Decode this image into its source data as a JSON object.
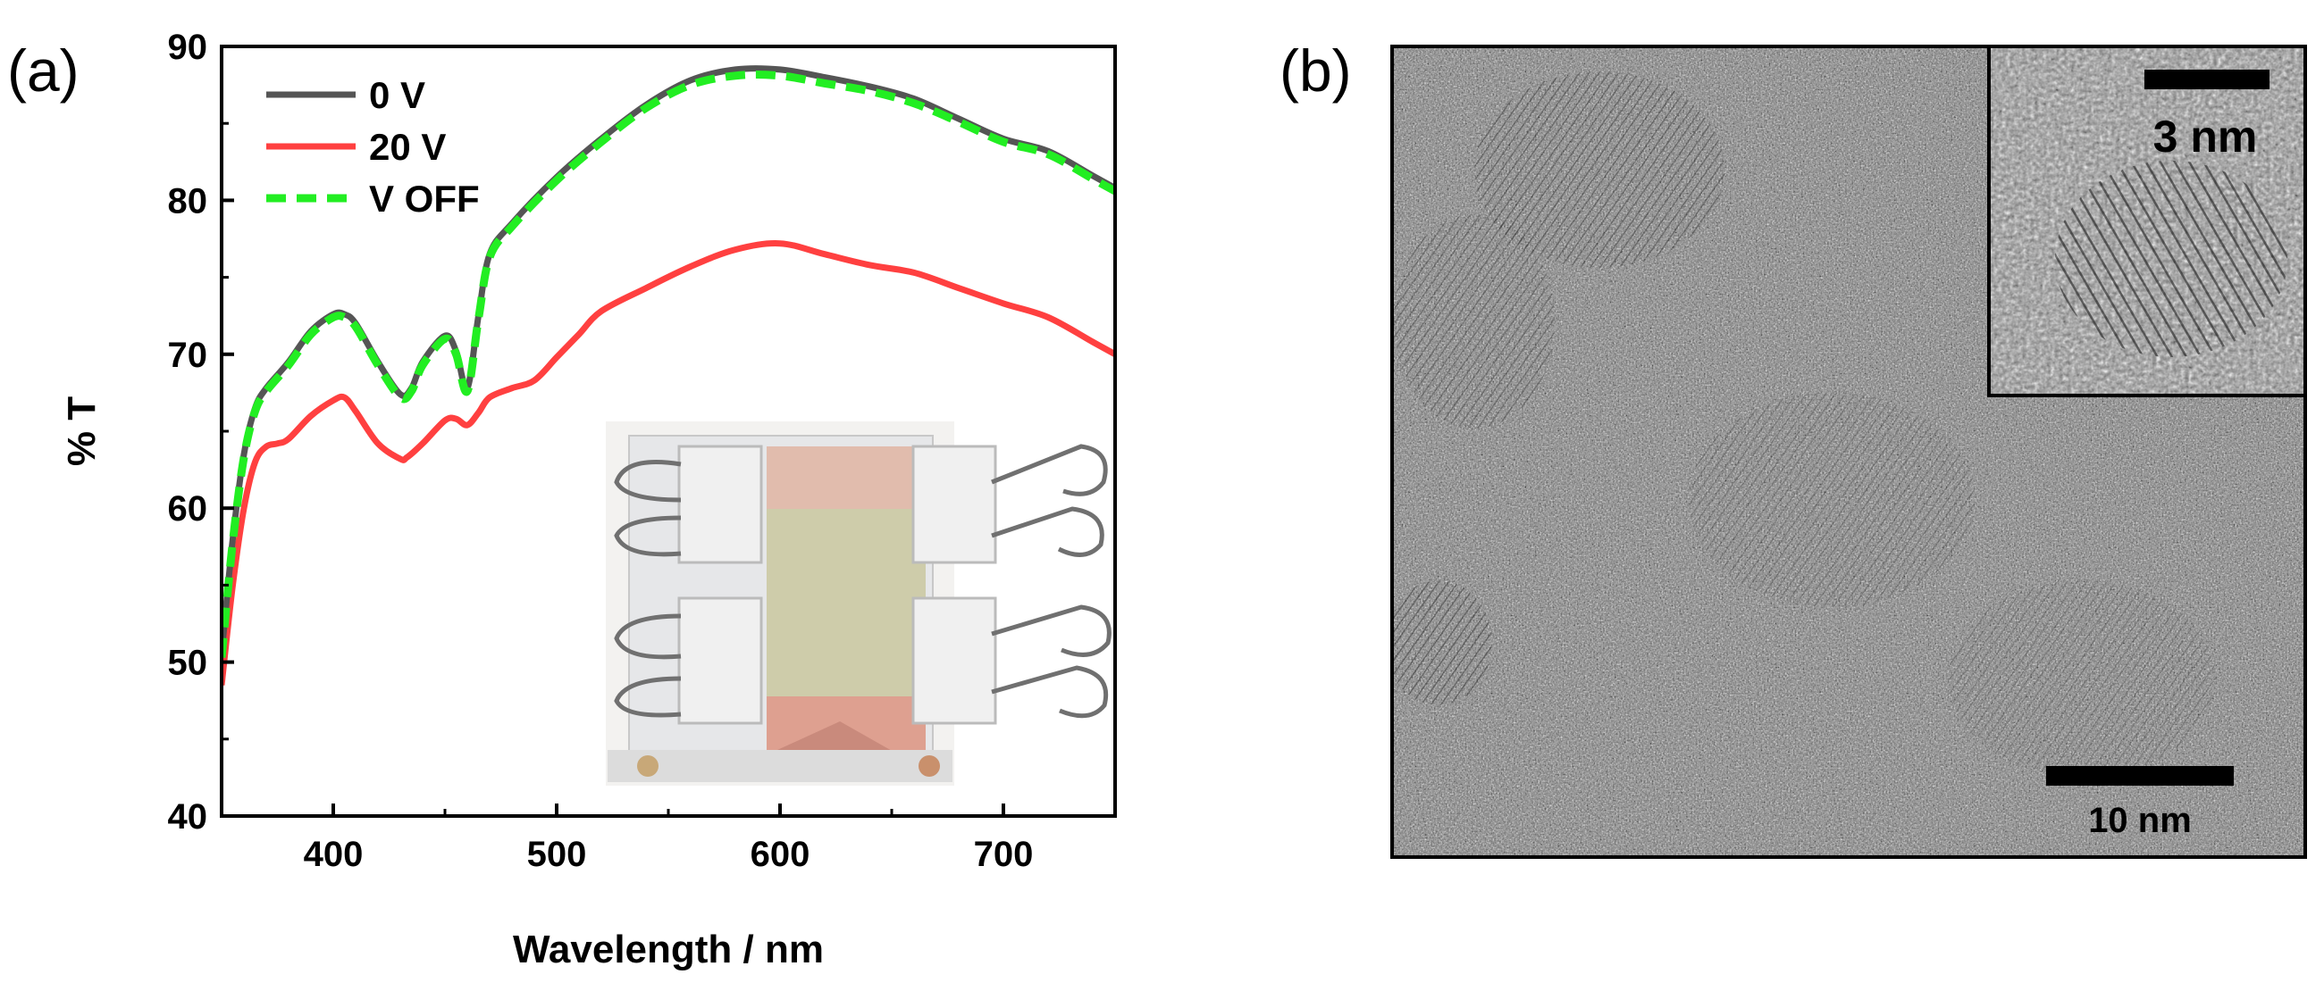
{
  "panels": {
    "a": {
      "label": "(a)"
    },
    "b": {
      "label": "(b)"
    }
  },
  "chart_data": {
    "type": "line",
    "title": "",
    "xlabel": "Wavelength / nm",
    "ylabel": "% T",
    "xlim": [
      350,
      750
    ],
    "ylim": [
      40,
      90
    ],
    "x_ticks": [
      400,
      500,
      600,
      700
    ],
    "y_ticks": [
      40,
      50,
      60,
      70,
      80,
      90
    ],
    "grid": false,
    "legend_position": "top-left",
    "series": [
      {
        "name": "0 V",
        "color": "#555555",
        "style": "solid",
        "x": [
          350,
          355,
          360,
          365,
          370,
          380,
          390,
          400,
          405,
          410,
          420,
          430,
          435,
          440,
          450,
          455,
          460,
          465,
          470,
          480,
          500,
          520,
          540,
          560,
          580,
          600,
          620,
          640,
          660,
          680,
          700,
          720,
          740,
          750
        ],
        "y": [
          50.5,
          58,
          63.5,
          66.5,
          67.8,
          69.5,
          71.5,
          72.6,
          72.6,
          72.0,
          69.5,
          67.4,
          67.8,
          69.5,
          71.2,
          70.2,
          67.8,
          72.5,
          76.5,
          78.5,
          81.5,
          84.0,
          86.2,
          87.8,
          88.5,
          88.5,
          88.0,
          87.4,
          86.6,
          85.3,
          84.0,
          83.2,
          81.6,
          80.8
        ]
      },
      {
        "name": "20 V",
        "color": "#ff4040",
        "style": "solid",
        "x": [
          350,
          355,
          360,
          365,
          370,
          375,
          380,
          390,
          400,
          405,
          410,
          420,
          430,
          433,
          440,
          450,
          455,
          460,
          465,
          470,
          480,
          490,
          500,
          510,
          520,
          540,
          560,
          580,
          600,
          620,
          640,
          660,
          680,
          700,
          720,
          740,
          750
        ],
        "y": [
          48.5,
          55,
          60,
          63,
          64.0,
          64.2,
          64.5,
          66.0,
          67.0,
          67.2,
          66.3,
          64.2,
          63.2,
          63.3,
          64.2,
          65.7,
          65.8,
          65.4,
          66.2,
          67.2,
          67.8,
          68.3,
          69.8,
          71.3,
          72.8,
          74.3,
          75.7,
          76.8,
          77.2,
          76.5,
          75.8,
          75.3,
          74.3,
          73.3,
          72.4,
          70.8,
          70.0
        ]
      },
      {
        "name": "V OFF",
        "color": "#22ee22",
        "style": "dashed",
        "x": [
          350,
          355,
          360,
          365,
          370,
          380,
          390,
          400,
          405,
          410,
          420,
          430,
          435,
          440,
          450,
          455,
          460,
          465,
          470,
          480,
          500,
          520,
          540,
          560,
          580,
          600,
          620,
          640,
          660,
          680,
          700,
          720,
          740,
          750
        ],
        "y": [
          50.3,
          57.8,
          63.3,
          66.3,
          67.6,
          69.3,
          71.3,
          72.4,
          72.4,
          71.8,
          69.3,
          67.2,
          67.6,
          69.3,
          71.0,
          70.0,
          67.6,
          72.3,
          76.3,
          78.3,
          81.3,
          83.8,
          86.0,
          87.5,
          88.1,
          88.1,
          87.6,
          87.1,
          86.3,
          85.1,
          83.8,
          83.0,
          81.4,
          80.6
        ]
      }
    ]
  },
  "tem": {
    "main_scale_bar": "10 nm",
    "inset_scale_bar": "3 nm"
  },
  "colors": {
    "series_0V": "#555555",
    "series_20V": "#ff4040",
    "series_VOFF": "#22ee22"
  }
}
